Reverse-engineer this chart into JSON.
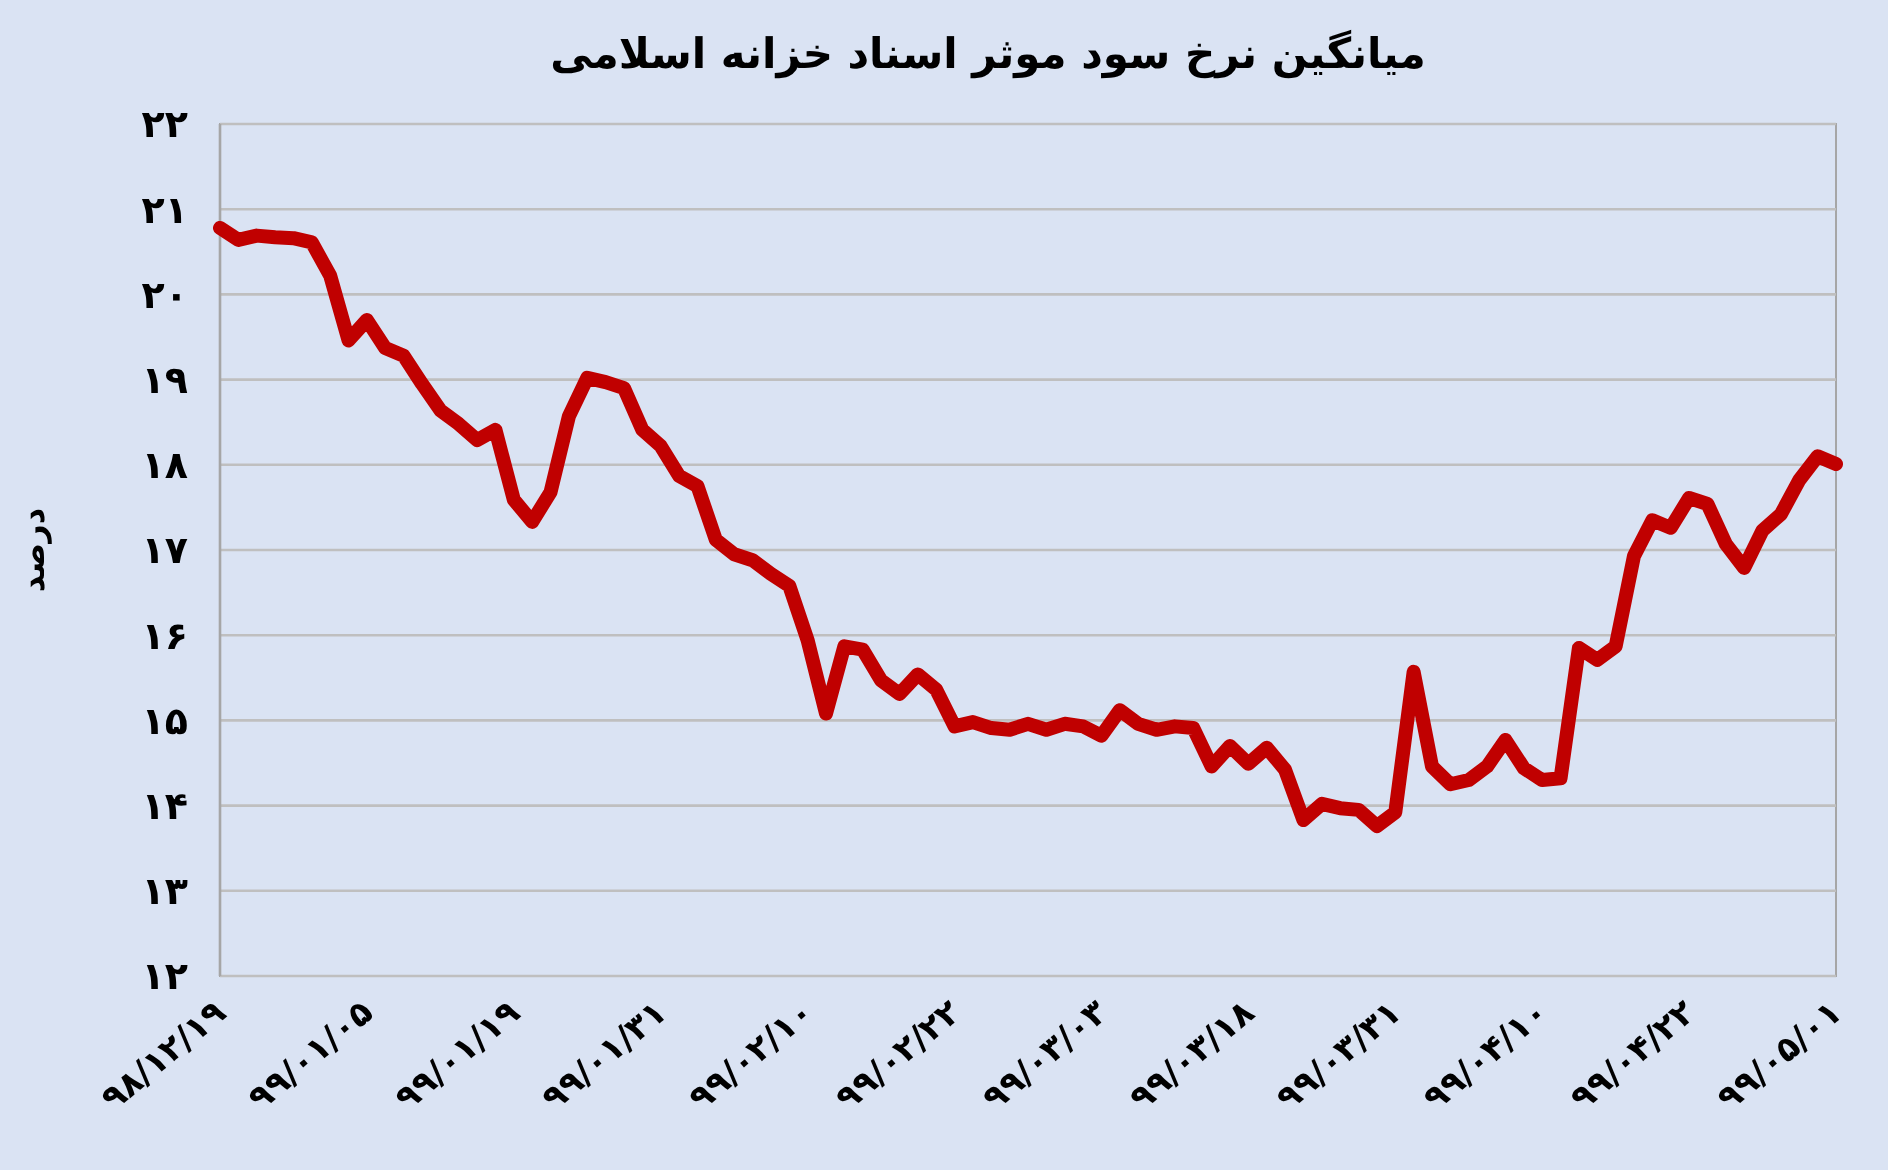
{
  "chart_data": {
    "type": "line",
    "title": "میانگین نرخ سود موثر اسناد خزانه اسلامی",
    "ylabel": "درصد",
    "categories": [
      "۹۸/۱۲/۱۹",
      null,
      null,
      null,
      null,
      null,
      null,
      null,
      "۹۹/۰۱/۰۵",
      null,
      null,
      null,
      null,
      null,
      null,
      null,
      "۹۹/۰۱/۱۹",
      null,
      null,
      null,
      null,
      null,
      null,
      null,
      "۹۹/۰۱/۳۱",
      null,
      null,
      null,
      null,
      null,
      null,
      null,
      "۹۹/۰۲/۱۰",
      null,
      null,
      null,
      null,
      null,
      null,
      null,
      "۹۹/۰۲/۲۲",
      null,
      null,
      null,
      null,
      null,
      null,
      null,
      "۹۹/۰۳/۰۳",
      null,
      null,
      null,
      null,
      null,
      null,
      null,
      "۹۹/۰۳/۱۸",
      null,
      null,
      null,
      null,
      null,
      null,
      null,
      "۹۹/۰۳/۳۱",
      null,
      null,
      null,
      null,
      null,
      null,
      null,
      "۹۹/۰۴/۱۰",
      null,
      null,
      null,
      null,
      null,
      null,
      null,
      "۹۹/۰۴/۲۲",
      null,
      null,
      null,
      null,
      null,
      null,
      null,
      "۹۹/۰۵/۰۱"
    ],
    "series": [
      {
        "color": "#c00000",
        "values": [
          20.78,
          20.64,
          20.69,
          20.67,
          20.66,
          20.61,
          20.22,
          19.46,
          19.7,
          19.37,
          19.28,
          18.95,
          18.64,
          18.48,
          18.29,
          18.41,
          17.59,
          17.33,
          17.68,
          18.57,
          19.02,
          18.97,
          18.9,
          18.41,
          18.22,
          17.87,
          17.75,
          17.12,
          16.95,
          16.88,
          16.72,
          16.58,
          15.94,
          15.08,
          15.87,
          15.83,
          15.47,
          15.31,
          15.54,
          15.36,
          14.93,
          14.98,
          14.91,
          14.89,
          14.96,
          14.89,
          14.96,
          14.93,
          14.82,
          15.12,
          14.96,
          14.89,
          14.93,
          14.91,
          14.46,
          14.7,
          14.49,
          14.68,
          14.42,
          13.83,
          14.02,
          13.97,
          13.95,
          13.76,
          13.92,
          15.57,
          14.46,
          14.25,
          14.3,
          14.46,
          14.77,
          14.44,
          14.3,
          14.32,
          15.85,
          15.71,
          15.87,
          16.93,
          17.35,
          17.26,
          17.61,
          17.54,
          17.07,
          16.79,
          17.23,
          17.42,
          17.82,
          18.1,
          18.01
        ]
      }
    ],
    "ylim": [
      12,
      22
    ],
    "yticks": [
      {
        "value": 12,
        "label": "۱۲"
      },
      {
        "value": 13,
        "label": "۱۳"
      },
      {
        "value": 14,
        "label": "۱۴"
      },
      {
        "value": 15,
        "label": "۱۵"
      },
      {
        "value": 16,
        "label": "۱۶"
      },
      {
        "value": 17,
        "label": "۱۷"
      },
      {
        "value": 18,
        "label": "۱۸"
      },
      {
        "value": 19,
        "label": "۱۹"
      },
      {
        "value": 20,
        "label": "۲۰"
      },
      {
        "value": 21,
        "label": "۲۱"
      },
      {
        "value": 22,
        "label": "۲۲"
      }
    ],
    "grid": "y",
    "line_style": "solid",
    "marker": "none"
  }
}
